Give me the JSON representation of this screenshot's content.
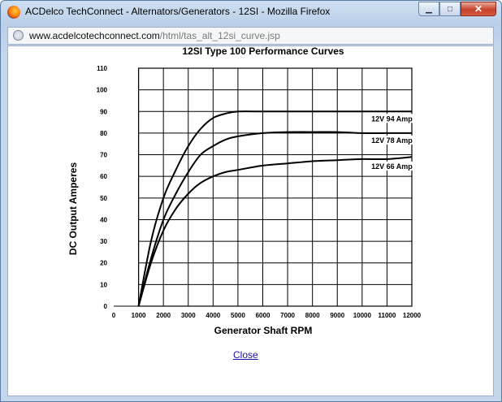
{
  "window": {
    "title": "ACDelco TechConnect - Alternators/Generators - 12SI - Mozilla Firefox",
    "controls": {
      "minimize": "▁",
      "maximize": "□",
      "close": "✕"
    }
  },
  "address": {
    "domain": "www.acdelcotechconnect.com",
    "path": "/html/tas_alt_12si_curve.jsp"
  },
  "icons": {
    "app": "firefox-icon",
    "site": "globe-icon"
  },
  "chart_data": {
    "type": "line",
    "title": "12SI Type 100 Performance Curves",
    "xlabel": "Generator Shaft RPM",
    "ylabel": "DC Output Amperes",
    "xlim": [
      0,
      12000
    ],
    "ylim": [
      0,
      110
    ],
    "x_ticks": [
      "0",
      "1000",
      "2000",
      "3000",
      "4000",
      "5000",
      "6000",
      "7000",
      "8000",
      "9000",
      "10000",
      "11000",
      "12000"
    ],
    "y_ticks": [
      "0",
      "10",
      "20",
      "30",
      "40",
      "50",
      "60",
      "70",
      "80",
      "90",
      "100",
      "110"
    ],
    "grid": true,
    "series": [
      {
        "name": "12V 94 Amp",
        "x": [
          1000,
          1500,
          2000,
          2500,
          3000,
          3500,
          4000,
          4500,
          5000,
          6000,
          7000,
          8000,
          9000,
          10000,
          11000,
          12000
        ],
        "y": [
          0,
          30,
          50,
          63,
          74,
          82,
          87,
          89,
          90,
          90,
          90,
          90,
          90,
          90,
          90,
          90
        ]
      },
      {
        "name": "12V 78 Amp",
        "x": [
          1000,
          1500,
          2000,
          2500,
          3000,
          3500,
          4000,
          4500,
          5000,
          6000,
          7000,
          8000,
          9000,
          10000,
          11000,
          12000
        ],
        "y": [
          0,
          22,
          40,
          52,
          62,
          70,
          74,
          77,
          78.5,
          80,
          80.5,
          80.5,
          80.5,
          80,
          80,
          80
        ]
      },
      {
        "name": "12V 66 Amp",
        "x": [
          1000,
          1500,
          2000,
          2500,
          3000,
          3500,
          4000,
          4500,
          5000,
          6000,
          7000,
          8000,
          9000,
          10000,
          11000,
          12000
        ],
        "y": [
          0,
          20,
          35,
          45,
          52,
          57,
          60,
          62,
          63,
          65,
          66,
          67,
          67.5,
          68,
          68,
          69
        ]
      }
    ],
    "label_anchor": [
      {
        "x": 10400,
        "y": 90
      },
      {
        "x": 10400,
        "y": 80
      },
      {
        "x": 10400,
        "y": 68
      }
    ]
  },
  "links": {
    "close": "Close"
  }
}
